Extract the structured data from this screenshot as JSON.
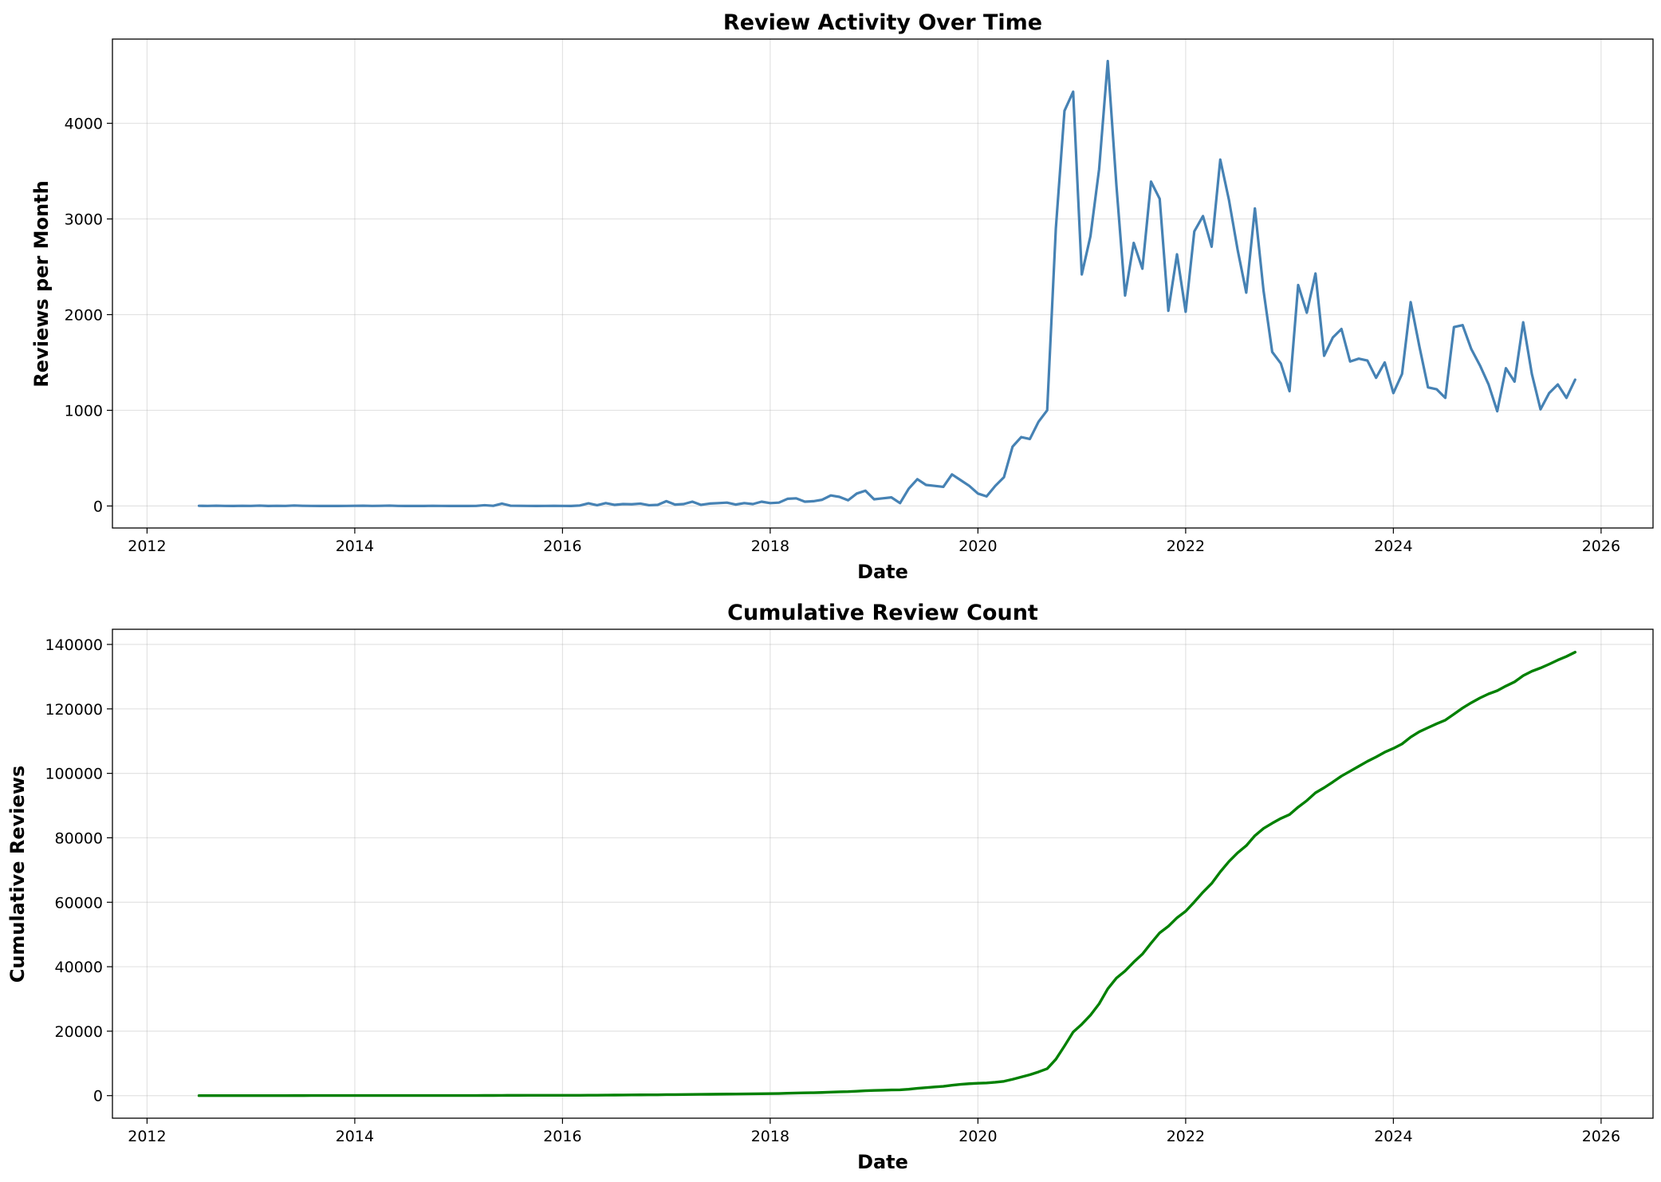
{
  "chart_data": [
    {
      "type": "line",
      "title": "Review Activity Over Time",
      "xlabel": "Date",
      "ylabel": "Reviews per Month",
      "xlim": [
        "2011-09-01",
        "2026-07-01"
      ],
      "ylim": [
        -230,
        4880
      ],
      "xticks": [
        "2012",
        "2014",
        "2016",
        "2018",
        "2020",
        "2022",
        "2024",
        "2026"
      ],
      "yticks": [
        0,
        1000,
        2000,
        3000,
        4000
      ],
      "grid": true,
      "color": "#4682b4",
      "series": [
        {
          "x": [
            "2012-07",
            "2012-08",
            "2012-09",
            "2012-10",
            "2012-11",
            "2012-12",
            "2013-01",
            "2013-02",
            "2013-03",
            "2013-04",
            "2013-05",
            "2013-06",
            "2013-07",
            "2013-08",
            "2013-09",
            "2013-10",
            "2013-11",
            "2013-12",
            "2014-01",
            "2014-02",
            "2014-03",
            "2014-04",
            "2014-05",
            "2014-06",
            "2014-07",
            "2014-08",
            "2014-09",
            "2014-10",
            "2014-11",
            "2014-12",
            "2015-01",
            "2015-02",
            "2015-03",
            "2015-04",
            "2015-05",
            "2015-06",
            "2015-07",
            "2015-08",
            "2015-09",
            "2015-10",
            "2015-11",
            "2015-12",
            "2016-01",
            "2016-02",
            "2016-03",
            "2016-04",
            "2016-05",
            "2016-06",
            "2016-07",
            "2016-08",
            "2016-09",
            "2016-10",
            "2016-11",
            "2016-12",
            "2017-01",
            "2017-02",
            "2017-03",
            "2017-04",
            "2017-05",
            "2017-06",
            "2017-07",
            "2017-08",
            "2017-09",
            "2017-10",
            "2017-11",
            "2017-12",
            "2018-01",
            "2018-02",
            "2018-03",
            "2018-04",
            "2018-05",
            "2018-06",
            "2018-07",
            "2018-08",
            "2018-09",
            "2018-10",
            "2018-11",
            "2018-12",
            "2019-01",
            "2019-02",
            "2019-03",
            "2019-04",
            "2019-05",
            "2019-06",
            "2019-07",
            "2019-08",
            "2019-09",
            "2019-10",
            "2019-11",
            "2019-12",
            "2020-01",
            "2020-02",
            "2020-03",
            "2020-04",
            "2020-05",
            "2020-06",
            "2020-07",
            "2020-08",
            "2020-09",
            "2020-10",
            "2020-11",
            "2020-12",
            "2021-01",
            "2021-02",
            "2021-03",
            "2021-04",
            "2021-05",
            "2021-06",
            "2021-07",
            "2021-08",
            "2021-09",
            "2021-10",
            "2021-11",
            "2021-12",
            "2022-01",
            "2022-02",
            "2022-03",
            "2022-04",
            "2022-05",
            "2022-06",
            "2022-07",
            "2022-08",
            "2022-09",
            "2022-10",
            "2022-11",
            "2022-12",
            "2023-01",
            "2023-02",
            "2023-03",
            "2023-04",
            "2023-05",
            "2023-06",
            "2023-07",
            "2023-08",
            "2023-09",
            "2023-10",
            "2023-11",
            "2023-12",
            "2024-01",
            "2024-02",
            "2024-03",
            "2024-04",
            "2024-05",
            "2024-06",
            "2024-07",
            "2024-08",
            "2024-09",
            "2024-10",
            "2024-11",
            "2024-12",
            "2025-01",
            "2025-02",
            "2025-03",
            "2025-04",
            "2025-05",
            "2025-06",
            "2025-07",
            "2025-08",
            "2025-09",
            "2025-10"
          ],
          "y": [
            2,
            1,
            3,
            1,
            0,
            2,
            1,
            4,
            0,
            2,
            1,
            5,
            2,
            1,
            0,
            1,
            0,
            1,
            2,
            3,
            1,
            2,
            4,
            1,
            0,
            1,
            0,
            2,
            1,
            0,
            1,
            0,
            1,
            8,
            2,
            25,
            3,
            2,
            1,
            0,
            1,
            2,
            1,
            0,
            5,
            28,
            8,
            30,
            12,
            20,
            18,
            25,
            8,
            12,
            50,
            15,
            20,
            45,
            12,
            25,
            30,
            35,
            15,
            30,
            20,
            45,
            30,
            35,
            75,
            80,
            45,
            50,
            65,
            110,
            95,
            60,
            130,
            160,
            70,
            80,
            90,
            30,
            180,
            280,
            220,
            210,
            200,
            330,
            270,
            210,
            130,
            100,
            210,
            300,
            620,
            720,
            700,
            880,
            1000,
            2900,
            4130,
            4330,
            2420,
            2820,
            3520,
            4650,
            3350,
            2200,
            2750,
            2480,
            3390,
            3210,
            2040,
            2630,
            2030,
            2870,
            3030,
            2710,
            3620,
            3200,
            2680,
            2230,
            3110,
            2250,
            1610,
            1490,
            1200,
            2310,
            2020,
            2430,
            1570,
            1760,
            1850,
            1510,
            1540,
            1520,
            1340,
            1500,
            1180,
            1380,
            2130,
            1670,
            1240,
            1220,
            1130,
            1870,
            1890,
            1640,
            1470,
            1270,
            990,
            1440,
            1300,
            1920,
            1380,
            1010,
            1180,
            1270,
            1130,
            1320
          ]
        }
      ]
    },
    {
      "type": "line",
      "title": "Cumulative Review Count",
      "xlabel": "Date",
      "ylabel": "Cumulative Reviews",
      "xlim": [
        "2011-09-01",
        "2026-07-01"
      ],
      "ylim": [
        -7000,
        144700
      ],
      "xticks": [
        "2012",
        "2014",
        "2016",
        "2018",
        "2020",
        "2022",
        "2024",
        "2026"
      ],
      "yticks": [
        0,
        20000,
        40000,
        60000,
        80000,
        100000,
        120000,
        140000
      ],
      "grid": true,
      "color": "#008000",
      "cumulative_of": 0
    }
  ]
}
